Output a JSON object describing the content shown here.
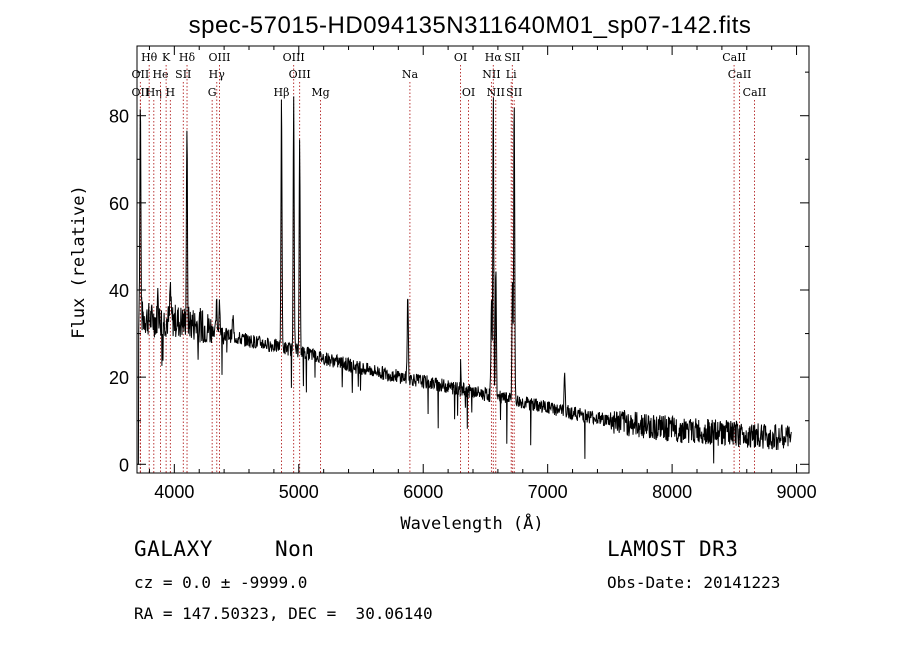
{
  "chart_data": {
    "type": "line",
    "title": "spec-57015-HD094135N311640M01_sp07-142.fits",
    "xlabel": "Wavelength (Å)",
    "ylabel": "Flux (relative)",
    "xlim": [
      3700,
      9100
    ],
    "ylim": [
      -2,
      96
    ],
    "xticks": [
      4000,
      5000,
      6000,
      7000,
      8000,
      9000
    ],
    "yticks": [
      0,
      20,
      40,
      60,
      80
    ],
    "continuum": [
      [
        3700,
        34
      ],
      [
        3850,
        33
      ],
      [
        4000,
        33
      ],
      [
        4200,
        32
      ],
      [
        4500,
        29
      ],
      [
        5000,
        26
      ],
      [
        5500,
        22
      ],
      [
        6000,
        19
      ],
      [
        6500,
        16
      ],
      [
        7000,
        13
      ],
      [
        7500,
        10
      ],
      [
        8000,
        8
      ],
      [
        8500,
        7
      ],
      [
        8950,
        6
      ]
    ],
    "emission_peaks": [
      {
        "w": 3727,
        "f": 83,
        "label": "OII"
      },
      {
        "w": 3869,
        "f": 40
      },
      {
        "w": 3968,
        "f": 41
      },
      {
        "w": 4101,
        "f": 78,
        "label": "Hδ"
      },
      {
        "w": 4340,
        "f": 37,
        "label": "Hγ"
      },
      {
        "w": 4363,
        "f": 38
      },
      {
        "w": 4471,
        "f": 34
      },
      {
        "w": 4861,
        "f": 85,
        "label": "Hβ"
      },
      {
        "w": 4959,
        "f": 86,
        "label": "OIII"
      },
      {
        "w": 5007,
        "f": 75,
        "label": "OIII"
      },
      {
        "w": 5876,
        "f": 40
      },
      {
        "w": 6300,
        "f": 24
      },
      {
        "w": 6548,
        "f": 38
      },
      {
        "w": 6563,
        "f": 85,
        "label": "Hα"
      },
      {
        "w": 6584,
        "f": 45
      },
      {
        "w": 6717,
        "f": 43
      },
      {
        "w": 6731,
        "f": 85
      },
      {
        "w": 7136,
        "f": 20
      }
    ],
    "line_markers": [
      {
        "w": 3727,
        "label": "OII",
        "row": 1
      },
      {
        "w": 3727,
        "label": "OII",
        "row": 2
      },
      {
        "w": 3798,
        "label": "Hθ",
        "row": 0
      },
      {
        "w": 3835,
        "label": "Hη",
        "row": 2
      },
      {
        "w": 3889,
        "label": "He",
        "row": 1
      },
      {
        "w": 3934,
        "label": "K",
        "row": 0
      },
      {
        "w": 3968,
        "label": "H",
        "row": 2
      },
      {
        "w": 4072,
        "label": "SII",
        "row": 1
      },
      {
        "w": 4102,
        "label": "Hδ",
        "row": 0
      },
      {
        "w": 4304,
        "label": "G",
        "row": 2
      },
      {
        "w": 4341,
        "label": "Hγ",
        "row": 1
      },
      {
        "w": 4363,
        "label": "OIII",
        "row": 0
      },
      {
        "w": 4861,
        "label": "Hβ",
        "row": 2
      },
      {
        "w": 4959,
        "label": "OIII",
        "row": 0
      },
      {
        "w": 5007,
        "label": "OIII",
        "row": 1
      },
      {
        "w": 5175,
        "label": "Mg",
        "row": 2
      },
      {
        "w": 5893,
        "label": "Na",
        "row": 1
      },
      {
        "w": 6300,
        "label": "OI",
        "row": 0
      },
      {
        "w": 6364,
        "label": "OI",
        "row": 2
      },
      {
        "w": 6548,
        "label": "NII",
        "row": 1
      },
      {
        "w": 6563,
        "label": "Hα",
        "row": 0
      },
      {
        "w": 6583,
        "label": "NII",
        "row": 2
      },
      {
        "w": 6707,
        "label": "Li",
        "row": 1
      },
      {
        "w": 6716,
        "label": "SII",
        "row": 0
      },
      {
        "w": 6731,
        "label": "SII",
        "row": 2
      },
      {
        "w": 8498,
        "label": "CaII",
        "row": 0
      },
      {
        "w": 8542,
        "label": "CaII",
        "row": 1
      },
      {
        "w": 8662,
        "label": "CaII",
        "row": 2
      }
    ]
  },
  "info": {
    "class_label": "GALAXY",
    "subclass": "Non",
    "survey": "LAMOST DR3",
    "cz": "cz = 0.0 ± -9999.0",
    "obs_date": "Obs-Date: 20141223",
    "coords": "RA = 147.50323, DEC =  30.06140"
  }
}
